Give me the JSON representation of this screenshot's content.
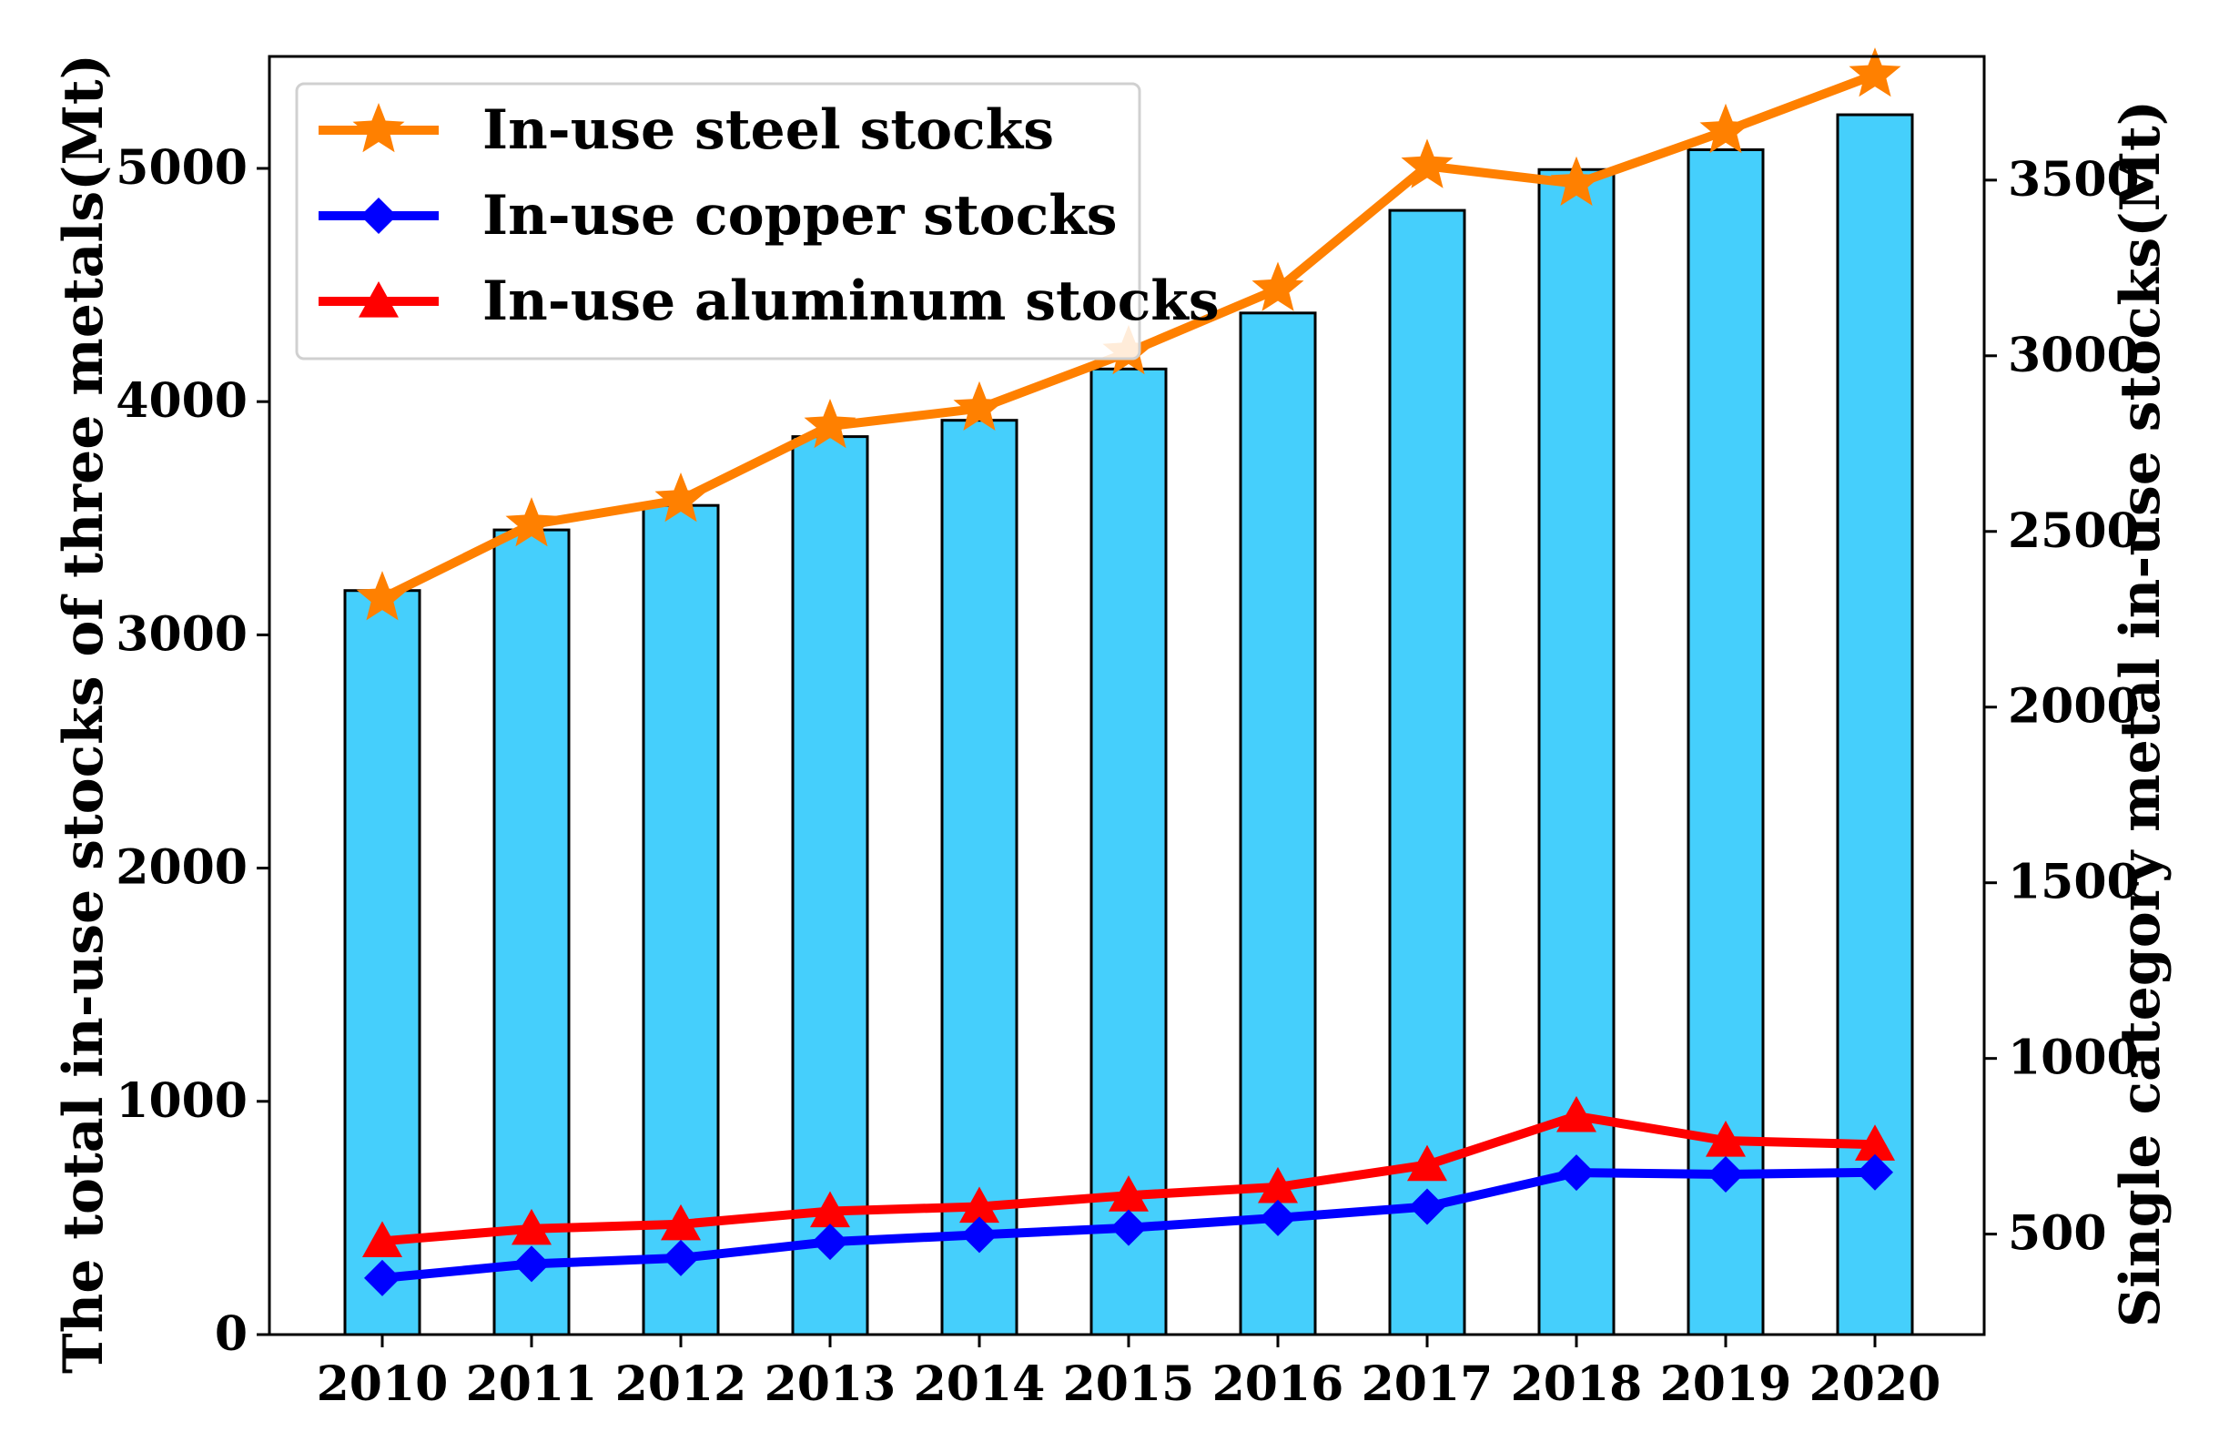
{
  "chart_data": {
    "type": "bar",
    "categories": [
      "2010",
      "2011",
      "2012",
      "2013",
      "2014",
      "2015",
      "2016",
      "2017",
      "2018",
      "2019",
      "2020"
    ],
    "bars": {
      "name": "The total in-use stocks of three metals",
      "axis": "left",
      "values": [
        3190,
        3450,
        3555,
        3850,
        3920,
        4140,
        4380,
        4820,
        4995,
        5080,
        5230
      ],
      "color": "#45CFFC"
    },
    "series": [
      {
        "name": "In-use steel stocks",
        "label": "In-use steel stocks",
        "axis": "right",
        "marker": "star",
        "color": "#FF8000",
        "values": [
          2310,
          2520,
          2590,
          2800,
          2850,
          3010,
          3190,
          3540,
          3490,
          3640,
          3800
        ]
      },
      {
        "name": "In-use copper stocks",
        "label": "In-use copper stocks",
        "axis": "right",
        "marker": "diamond",
        "color": "#0000FF",
        "values": [
          375,
          415,
          432,
          478,
          498,
          518,
          546,
          578,
          675,
          670,
          676
        ]
      },
      {
        "name": "In-use aluminum stocks",
        "label": "In-use aluminum stocks",
        "axis": "right",
        "marker": "triangle",
        "color": "#FF0000",
        "values": [
          480,
          515,
          528,
          565,
          578,
          610,
          634,
          697,
          836,
          766,
          755
        ]
      }
    ],
    "ylabel_left": "The total in-use stocks of three metals(Mt)",
    "ylabel_right": "Single category metal in-use stocks(Mt)",
    "ylim_left": [
      0,
      5480
    ],
    "yticks_left": [
      0,
      1000,
      2000,
      3000,
      4000,
      5000
    ],
    "ylim_right": [
      214,
      3852
    ],
    "yticks_right": [
      500,
      1000,
      1500,
      2000,
      2500,
      3000,
      3500
    ],
    "legend_position": "top-left"
  }
}
